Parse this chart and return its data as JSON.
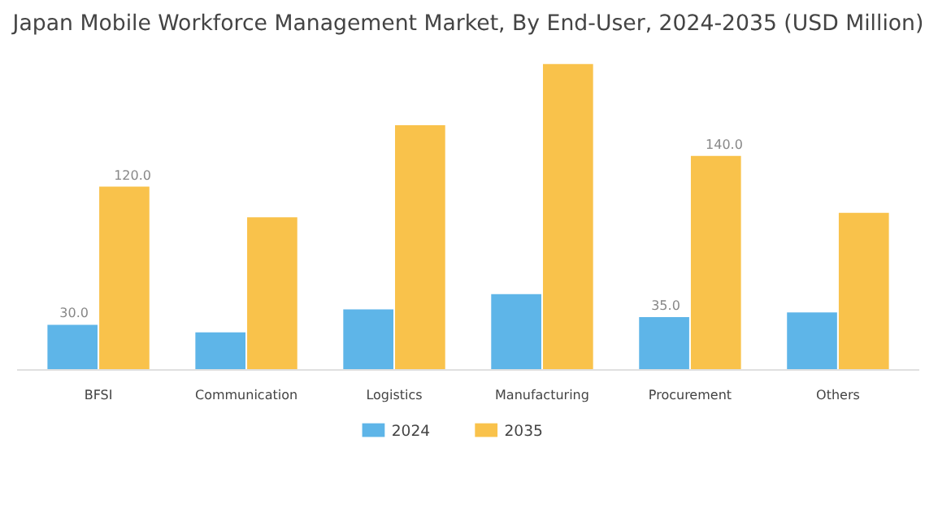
{
  "chart_data": {
    "type": "bar",
    "title": "Japan Mobile Workforce Management Market, By End-User, 2024-2035 (USD Million)",
    "categories": [
      "BFSI",
      "Communication",
      "Logistics",
      "Manufacturing",
      "Procurement",
      "Others"
    ],
    "series": [
      {
        "name": "2024",
        "color": "#5eb5e8",
        "values": [
          30.0,
          25,
          40,
          50,
          35.0,
          38
        ],
        "value_labels": [
          "30.0",
          null,
          null,
          null,
          "35.0",
          null
        ]
      },
      {
        "name": "2035",
        "color": "#f9c24b",
        "values": [
          120.0,
          100,
          160,
          200,
          140.0,
          103
        ],
        "value_labels": [
          "120.0",
          null,
          null,
          null,
          "140.0",
          null
        ]
      }
    ],
    "legend": "bottom"
  }
}
